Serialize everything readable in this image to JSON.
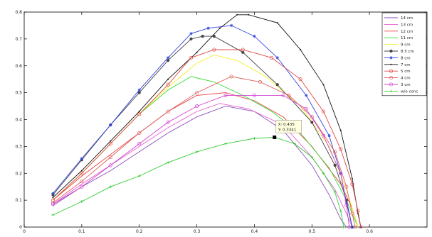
{
  "chart_data": {
    "type": "line",
    "title": "",
    "xlabel": "",
    "ylabel": "",
    "xlim": [
      0,
      0.7
    ],
    "ylim": [
      0,
      0.8
    ],
    "x_ticks": [
      "0",
      "0.1",
      "0.2",
      "0.3",
      "0.4",
      "0.5",
      "0.6"
    ],
    "y_ticks": [
      "0",
      "0.1",
      "0.2",
      "0.3",
      "0.4",
      "0.5",
      "0.6",
      "0.7",
      "0.8"
    ],
    "x_tick_values": [
      0,
      0.1,
      0.2,
      0.3,
      0.4,
      0.5,
      0.6
    ],
    "y_tick_values": [
      0,
      0.1,
      0.2,
      0.3,
      0.4,
      0.5,
      0.6,
      0.7,
      0.8
    ],
    "grid": false,
    "legend_position": "top-right",
    "series": [
      {
        "name": "14 cm",
        "color": "#8a4fb8",
        "marker": "none",
        "points": [
          [
            0.05,
            0.08
          ],
          [
            0.1,
            0.15
          ],
          [
            0.15,
            0.21
          ],
          [
            0.2,
            0.28
          ],
          [
            0.25,
            0.35
          ],
          [
            0.3,
            0.41
          ],
          [
            0.35,
            0.45
          ],
          [
            0.4,
            0.43
          ],
          [
            0.45,
            0.36
          ],
          [
            0.5,
            0.23
          ],
          [
            0.53,
            0.12
          ],
          [
            0.55,
            0.03
          ],
          [
            0.56,
            0.0
          ]
        ]
      },
      {
        "name": "13 cm",
        "color": "#e85fd0",
        "marker": "none",
        "points": [
          [
            0.05,
            0.085
          ],
          [
            0.1,
            0.16
          ],
          [
            0.15,
            0.23
          ],
          [
            0.2,
            0.3
          ],
          [
            0.25,
            0.37
          ],
          [
            0.3,
            0.43
          ],
          [
            0.34,
            0.46
          ],
          [
            0.39,
            0.44
          ],
          [
            0.45,
            0.38
          ],
          [
            0.5,
            0.26
          ],
          [
            0.54,
            0.14
          ],
          [
            0.56,
            0.05
          ],
          [
            0.57,
            0.0
          ]
        ]
      },
      {
        "name": "12 cm",
        "color": "#e83a3a",
        "marker": "none",
        "points": [
          [
            0.05,
            0.1
          ],
          [
            0.1,
            0.19
          ],
          [
            0.15,
            0.27
          ],
          [
            0.2,
            0.35
          ],
          [
            0.25,
            0.43
          ],
          [
            0.3,
            0.49
          ],
          [
            0.35,
            0.5
          ],
          [
            0.4,
            0.47
          ],
          [
            0.45,
            0.41
          ],
          [
            0.5,
            0.3
          ],
          [
            0.55,
            0.16
          ],
          [
            0.57,
            0.07
          ],
          [
            0.58,
            0.0
          ]
        ]
      },
      {
        "name": "11 cm",
        "color": "#33dd33",
        "marker": "none",
        "points": [
          [
            0.05,
            0.1
          ],
          [
            0.1,
            0.2
          ],
          [
            0.15,
            0.31
          ],
          [
            0.2,
            0.42
          ],
          [
            0.25,
            0.51
          ],
          [
            0.29,
            0.56
          ],
          [
            0.33,
            0.54
          ],
          [
            0.38,
            0.49
          ],
          [
            0.43,
            0.43
          ],
          [
            0.48,
            0.35
          ],
          [
            0.53,
            0.22
          ],
          [
            0.56,
            0.1
          ],
          [
            0.58,
            0.0
          ]
        ]
      },
      {
        "name": "9 cm",
        "color": "#f5ef2a",
        "marker": "none",
        "points": [
          [
            0.05,
            0.1
          ],
          [
            0.1,
            0.2
          ],
          [
            0.15,
            0.31
          ],
          [
            0.2,
            0.42
          ],
          [
            0.25,
            0.52
          ],
          [
            0.3,
            0.61
          ],
          [
            0.33,
            0.64
          ],
          [
            0.37,
            0.62
          ],
          [
            0.42,
            0.56
          ],
          [
            0.48,
            0.45
          ],
          [
            0.53,
            0.3
          ],
          [
            0.56,
            0.14
          ],
          [
            0.58,
            0.0
          ]
        ]
      },
      {
        "name": "8.5 cm",
        "color": "#444444",
        "marker": "circle-filled",
        "points": [
          [
            0.05,
            0.12
          ],
          [
            0.1,
            0.25
          ],
          [
            0.15,
            0.38
          ],
          [
            0.2,
            0.5
          ],
          [
            0.25,
            0.62
          ],
          [
            0.29,
            0.7
          ],
          [
            0.31,
            0.71
          ],
          [
            0.33,
            0.71
          ],
          [
            0.38,
            0.65
          ],
          [
            0.44,
            0.53
          ],
          [
            0.5,
            0.39
          ],
          [
            0.54,
            0.23
          ],
          [
            0.56,
            0.1
          ],
          [
            0.57,
            0.0
          ]
        ]
      },
      {
        "name": "8 cm",
        "color": "#3344e0",
        "marker": "star",
        "points": [
          [
            0.05,
            0.125
          ],
          [
            0.1,
            0.255
          ],
          [
            0.15,
            0.38
          ],
          [
            0.2,
            0.51
          ],
          [
            0.25,
            0.63
          ],
          [
            0.29,
            0.72
          ],
          [
            0.32,
            0.74
          ],
          [
            0.36,
            0.75
          ],
          [
            0.4,
            0.71
          ],
          [
            0.44,
            0.63
          ],
          [
            0.49,
            0.49
          ],
          [
            0.53,
            0.34
          ],
          [
            0.55,
            0.2
          ],
          [
            0.56,
            0.09
          ],
          [
            0.57,
            0.0
          ]
        ]
      },
      {
        "name": "7 cm",
        "color": "#111111",
        "marker": "point",
        "points": [
          [
            0.05,
            0.11
          ],
          [
            0.1,
            0.21
          ],
          [
            0.15,
            0.32
          ],
          [
            0.2,
            0.43
          ],
          [
            0.25,
            0.55
          ],
          [
            0.3,
            0.65
          ],
          [
            0.34,
            0.74
          ],
          [
            0.37,
            0.79
          ],
          [
            0.39,
            0.79
          ],
          [
            0.44,
            0.76
          ],
          [
            0.48,
            0.66
          ],
          [
            0.52,
            0.53
          ],
          [
            0.55,
            0.36
          ],
          [
            0.57,
            0.18
          ],
          [
            0.58,
            0.05
          ],
          [
            0.585,
            0.0
          ]
        ]
      },
      {
        "name": "5 cm",
        "color": "#e04848",
        "marker": "circle",
        "points": [
          [
            0.05,
            0.1
          ],
          [
            0.1,
            0.2
          ],
          [
            0.15,
            0.31
          ],
          [
            0.2,
            0.42
          ],
          [
            0.25,
            0.53
          ],
          [
            0.29,
            0.63
          ],
          [
            0.33,
            0.66
          ],
          [
            0.38,
            0.66
          ],
          [
            0.43,
            0.63
          ],
          [
            0.48,
            0.55
          ],
          [
            0.52,
            0.43
          ],
          [
            0.55,
            0.29
          ],
          [
            0.57,
            0.16
          ],
          [
            0.58,
            0.06
          ],
          [
            0.585,
            0.0
          ]
        ]
      },
      {
        "name": "4 cm",
        "color": "#e06060",
        "marker": "circle",
        "points": [
          [
            0.05,
            0.09
          ],
          [
            0.1,
            0.17
          ],
          [
            0.15,
            0.26
          ],
          [
            0.2,
            0.35
          ],
          [
            0.25,
            0.43
          ],
          [
            0.3,
            0.5
          ],
          [
            0.36,
            0.56
          ],
          [
            0.41,
            0.54
          ],
          [
            0.46,
            0.49
          ],
          [
            0.5,
            0.41
          ],
          [
            0.54,
            0.28
          ],
          [
            0.56,
            0.15
          ],
          [
            0.57,
            0.05
          ],
          [
            0.575,
            0.0
          ]
        ]
      },
      {
        "name": "3 cm",
        "color": "#d044d0",
        "marker": "circle",
        "points": [
          [
            0.05,
            0.085
          ],
          [
            0.1,
            0.15
          ],
          [
            0.15,
            0.23
          ],
          [
            0.2,
            0.31
          ],
          [
            0.25,
            0.39
          ],
          [
            0.3,
            0.45
          ],
          [
            0.35,
            0.49
          ],
          [
            0.4,
            0.49
          ],
          [
            0.45,
            0.49
          ],
          [
            0.49,
            0.44
          ],
          [
            0.52,
            0.34
          ],
          [
            0.55,
            0.2
          ],
          [
            0.56,
            0.08
          ],
          [
            0.565,
            0.0
          ]
        ]
      },
      {
        "name": "w/o conc",
        "color": "#33cc33",
        "marker": "plus",
        "points": [
          [
            0.05,
            0.045
          ],
          [
            0.1,
            0.095
          ],
          [
            0.15,
            0.15
          ],
          [
            0.2,
            0.19
          ],
          [
            0.25,
            0.24
          ],
          [
            0.3,
            0.28
          ],
          [
            0.35,
            0.31
          ],
          [
            0.4,
            0.33
          ],
          [
            0.435,
            0.3341
          ],
          [
            0.47,
            0.31
          ],
          [
            0.5,
            0.26
          ],
          [
            0.52,
            0.2
          ],
          [
            0.54,
            0.13
          ],
          [
            0.55,
            0.06
          ],
          [
            0.555,
            0.0
          ]
        ]
      }
    ],
    "datatip": {
      "x_label": "X: 0.435",
      "y_label": "Y: 0.3341",
      "x": 0.435,
      "y": 0.3341
    }
  }
}
